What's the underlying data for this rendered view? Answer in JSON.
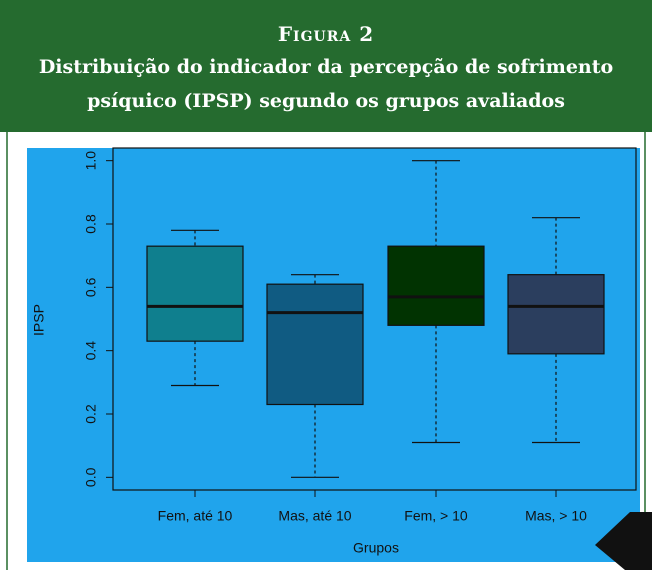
{
  "chart_data": {
    "type": "box",
    "figure_label": "Figura 2",
    "title": "Distribuição do indicador da percepção de sofrimento psíquico (IPSP) segundo os grupos avaliados",
    "xlabel": "Grupos",
    "ylabel": "IPSP",
    "categories": [
      "Fem, até 10",
      "Mas, até 10",
      "Fem, > 10",
      "Mas, > 10"
    ],
    "boxes": [
      {
        "min": 0.29,
        "q1": 0.43,
        "median": 0.54,
        "q3": 0.73,
        "max": 0.78,
        "color": "#0f7f8e"
      },
      {
        "min": 0.0,
        "q1": 0.23,
        "median": 0.52,
        "q3": 0.61,
        "max": 0.64,
        "color": "#105b82"
      },
      {
        "min": 0.11,
        "q1": 0.48,
        "median": 0.57,
        "q3": 0.73,
        "max": 1.0,
        "color": "#013301"
      },
      {
        "min": 0.11,
        "q1": 0.39,
        "median": 0.54,
        "q3": 0.64,
        "max": 0.82,
        "color": "#2b3e5e"
      }
    ],
    "ylim": [
      -0.04,
      1.04
    ],
    "yticks": [
      {
        "value": 0,
        "label": "0.0"
      },
      0.2,
      0.4,
      0.6,
      0.8,
      {
        "value": 1,
        "label": "1.0"
      }
    ]
  }
}
